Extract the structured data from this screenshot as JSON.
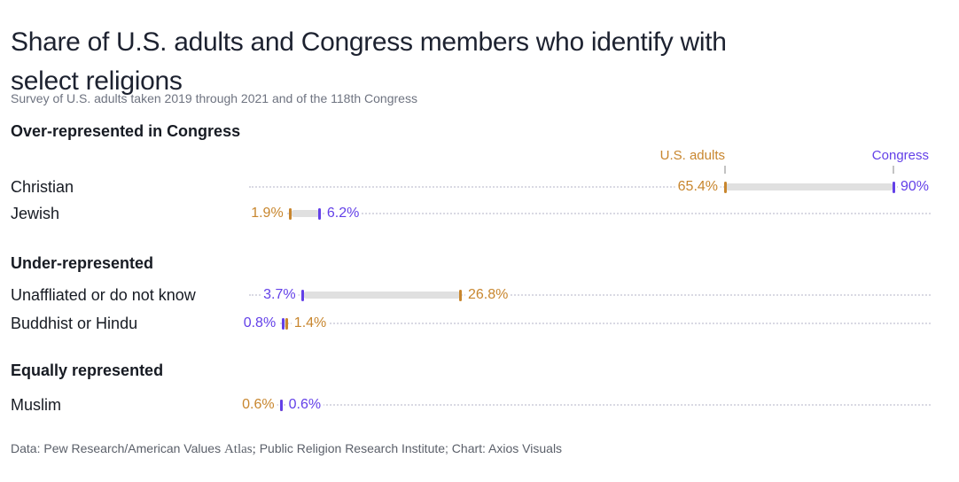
{
  "page": {
    "title_line1": "Share of U.S. adults and Congress members who identify with",
    "title_line2": "select religions",
    "subtitle": "Survey of U.S. adults taken 2019 through 2021 and of the 118th Congress",
    "footer_part1": "Data: Pew Research/American Values ",
    "footer_serif": "Atlas;",
    "footer_part2": " Public Religion Research Institute; Chart: Axios Visuals"
  },
  "legend": {
    "us_adults": "U.S. adults",
    "congress": "Congress"
  },
  "colors": {
    "us_adults": "#c8862e",
    "congress": "#6340e8",
    "bar": "#e0e0e0",
    "dotted_line": "#d9d9e3",
    "legend_tick": "#c3c3c3",
    "title_text": "#1d2230",
    "muted_text": "#6e7380",
    "footer_text": "#5a5f69",
    "label_text": "#171b23"
  },
  "chart_data": {
    "type": "dumbbell",
    "units": "percent",
    "series": [
      "U.S. adults",
      "Congress"
    ],
    "axis": {
      "min": 0,
      "max": 90
    },
    "legend_position": "top-right",
    "sections": [
      {
        "header": "Over-represented in Congress",
        "rows": [
          {
            "label": "Christian",
            "us_adults": 65.4,
            "congress": 90,
            "us_label": "65.4%",
            "congress_label": "90%"
          },
          {
            "label": "Jewish",
            "us_adults": 1.9,
            "congress": 6.2,
            "us_label": "1.9%",
            "congress_label": "6.2%"
          }
        ]
      },
      {
        "header": "Under-represented",
        "rows": [
          {
            "label": "Unaffliated or do not know",
            "us_adults": 26.8,
            "congress": 3.7,
            "us_label": "26.8%",
            "congress_label": "3.7%"
          },
          {
            "label": "Buddhist or Hindu",
            "us_adults": 1.4,
            "congress": 0.8,
            "us_label": "1.4%",
            "congress_label": "0.8%"
          }
        ]
      },
      {
        "header": "Equally represented",
        "rows": [
          {
            "label": "Muslim",
            "us_adults": 0.6,
            "congress": 0.6,
            "us_label": "0.6%",
            "congress_label": "0.6%"
          }
        ]
      }
    ]
  }
}
